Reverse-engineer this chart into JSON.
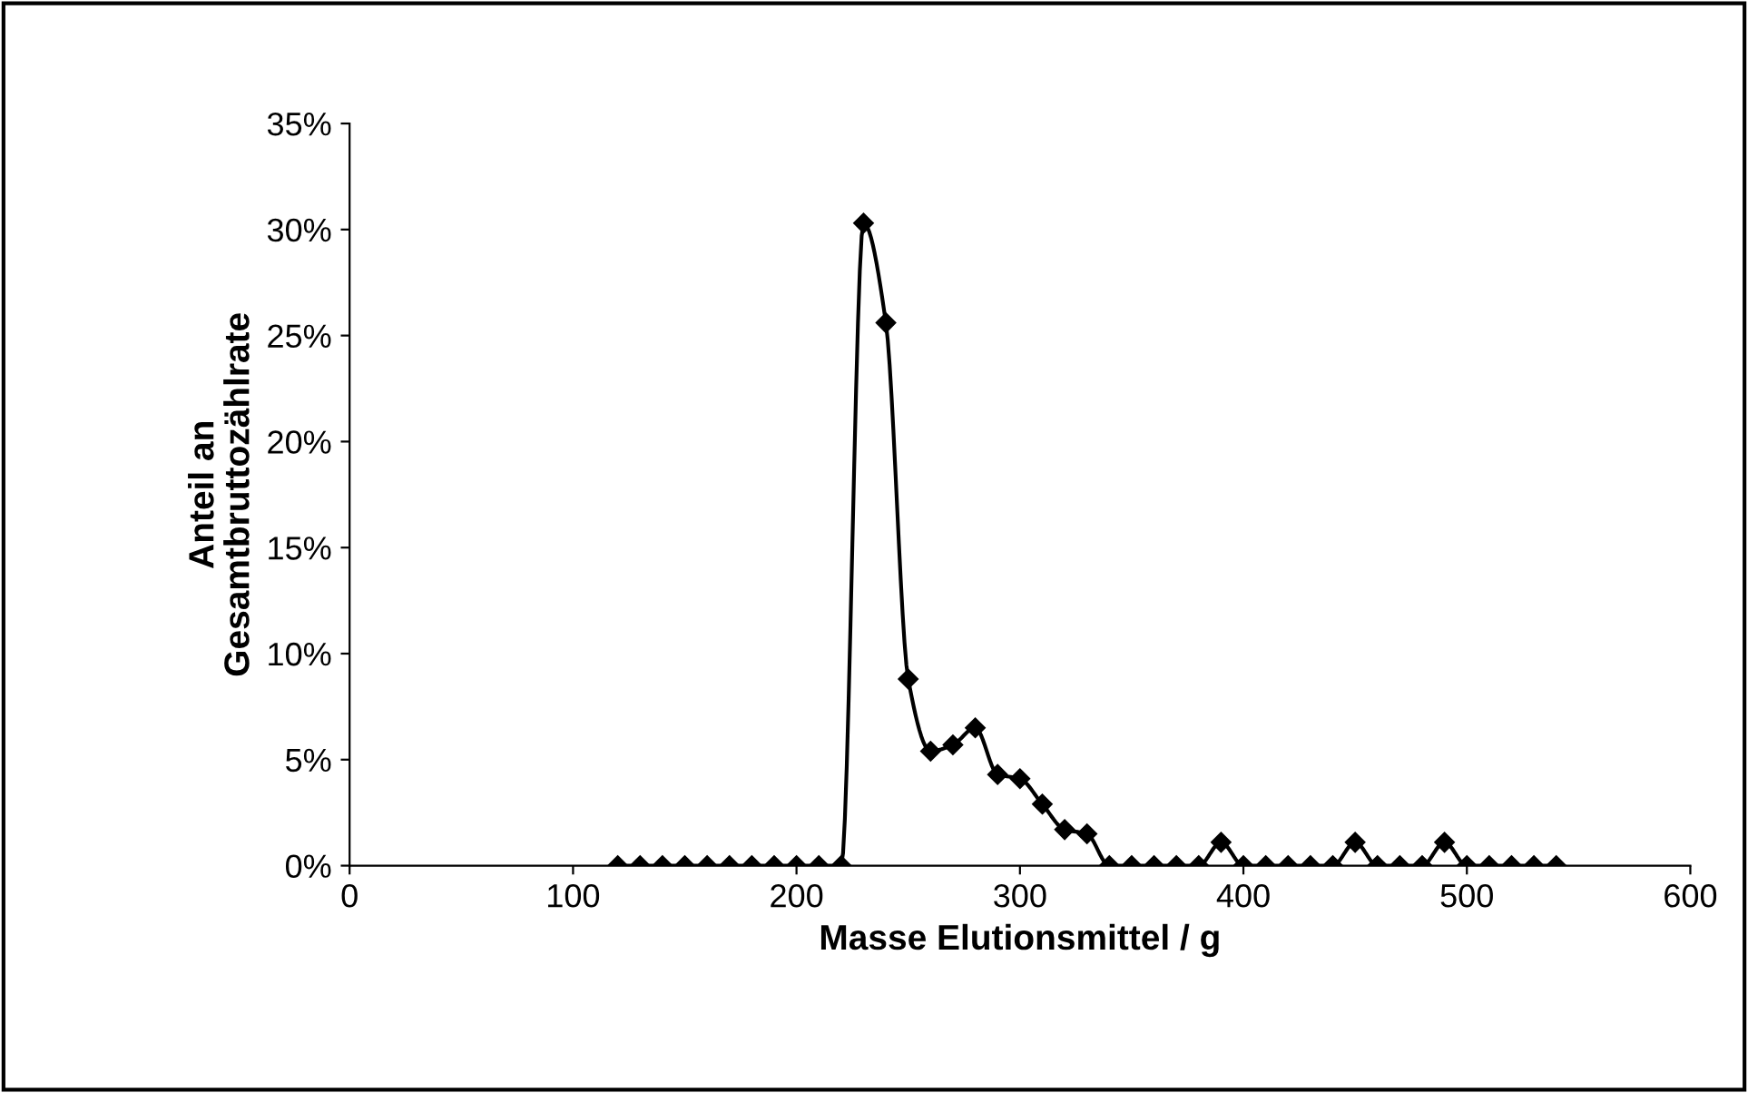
{
  "chart_data": {
    "type": "line",
    "xlabel": "Masse Elutionsmittel / g",
    "ylabel": "Anteil an\nGesamtbruttozählrate",
    "x": [
      120,
      130,
      140,
      150,
      160,
      170,
      180,
      190,
      200,
      210,
      220,
      230,
      240,
      250,
      260,
      270,
      280,
      290,
      300,
      310,
      320,
      330,
      340,
      350,
      360,
      370,
      380,
      390,
      400,
      410,
      420,
      430,
      440,
      450,
      460,
      470,
      480,
      490,
      500,
      510,
      520,
      530,
      540
    ],
    "series": [
      {
        "color": "#000000",
        "values": [
          0,
          0,
          0,
          0,
          0,
          0,
          0,
          0,
          0,
          0,
          0,
          30.3,
          25.6,
          8.8,
          5.4,
          5.7,
          6.5,
          4.3,
          4.1,
          2.9,
          1.7,
          1.5,
          0,
          0,
          0,
          0,
          0,
          1.1,
          0,
          0,
          0,
          0,
          0,
          1.1,
          0,
          0,
          0,
          1.1,
          0,
          0,
          0,
          0,
          0
        ]
      }
    ],
    "xlim": [
      0,
      600
    ],
    "xticks": [
      0,
      100,
      200,
      300,
      400,
      500,
      600
    ],
    "ylim": [
      0,
      35
    ],
    "yticks": [
      {
        "value": 0,
        "label": "0%"
      },
      {
        "value": 5,
        "label": "5%"
      },
      {
        "value": 10,
        "label": "10%"
      },
      {
        "value": 15,
        "label": "15%"
      },
      {
        "value": 20,
        "label": "20%"
      },
      {
        "value": 25,
        "label": "25%"
      },
      {
        "value": 30,
        "label": "30%"
      },
      {
        "value": 35,
        "label": "35%"
      }
    ],
    "grid": false,
    "legend": false,
    "marker": "diamond",
    "line_style": "solid"
  }
}
